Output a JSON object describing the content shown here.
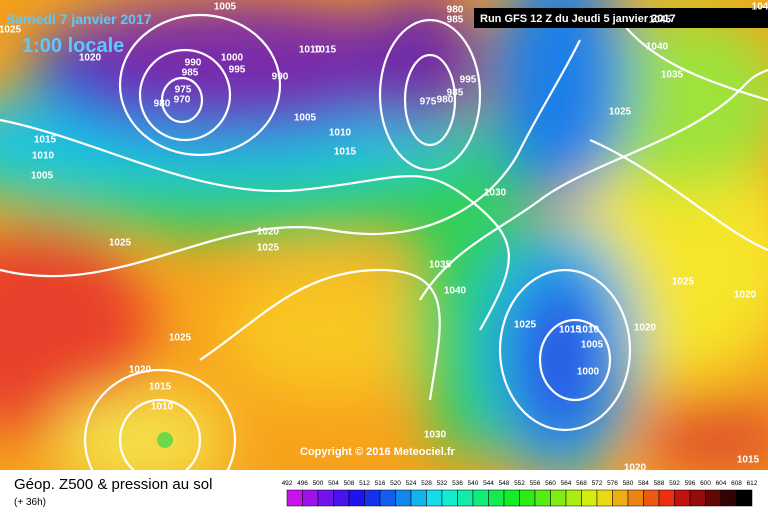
{
  "header": {
    "date": "Samedi 7 janvier 2017",
    "time": "1:00 locale",
    "run": "Run GFS 12 Z du Jeudi 5 janvier 2017"
  },
  "copyright": "Copyright © 2016 Meteociel.fr",
  "footer": {
    "title": "Géop. Z500 & pression au sol",
    "subtitle": "(+ 36h)"
  },
  "legend": {
    "ticks": [
      492,
      496,
      500,
      504,
      508,
      512,
      516,
      520,
      524,
      528,
      532,
      536,
      540,
      544,
      548,
      552,
      556,
      560,
      564,
      568,
      572,
      576,
      580,
      584,
      588,
      592,
      596,
      600,
      604,
      608,
      612
    ]
  },
  "isobar_labels": [
    "1005",
    "1025",
    "1020",
    "990",
    "985",
    "1000",
    "995",
    "990",
    "1010",
    "1015",
    "975",
    "970",
    "980",
    "1005",
    "1010",
    "1015",
    "1015",
    "1010",
    "1005",
    "980",
    "985",
    "975",
    "980",
    "985",
    "995",
    "1030",
    "1025",
    "1020",
    "1025",
    "1035",
    "1040",
    "1025",
    "1015",
    "1010",
    "1005",
    "1000",
    "1025",
    "1020",
    "1015",
    "1010",
    "1030",
    "1020",
    "1015",
    "1020",
    "1025",
    "1020",
    "1025",
    "1035",
    "1040",
    "1045",
    "104"
  ]
}
